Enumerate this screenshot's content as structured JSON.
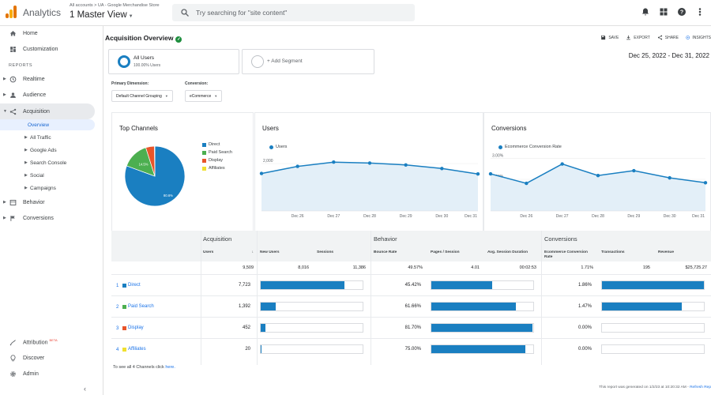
{
  "header": {
    "app_name": "Analytics",
    "breadcrumb": "All accounts > UA - Google Merchandise Store",
    "view_name": "1 Master View",
    "search_placeholder": "Try searching for \"site content\""
  },
  "sidebar": {
    "top_items": [
      {
        "label": "Home"
      },
      {
        "label": "Customization"
      }
    ],
    "reports_header": "REPORTS",
    "reports": [
      {
        "label": "Realtime"
      },
      {
        "label": "Audience"
      },
      {
        "label": "Acquisition"
      },
      {
        "label": "Behavior"
      },
      {
        "label": "Conversions"
      }
    ],
    "acquisition_sub": [
      "Overview",
      "All Traffic",
      "Google Ads",
      "Search Console",
      "Social",
      "Campaigns"
    ],
    "bottom_items": [
      {
        "label": "Attribution",
        "badge": "BETA"
      },
      {
        "label": "Discover"
      },
      {
        "label": "Admin"
      }
    ]
  },
  "page": {
    "title": "Acquisition Overview",
    "actions": [
      "SAVE",
      "EXPORT",
      "SHARE",
      "INSIGHTS"
    ],
    "segments": [
      {
        "name": "All Users",
        "sub": "100.00% Users"
      },
      {
        "name": "+ Add Segment"
      }
    ],
    "date_range": "Dec 25, 2022 - Dec 31, 2022",
    "primary_dimension_label": "Primary Dimension:",
    "primary_dimension_value": "Default Channel Grouping",
    "conversion_label": "Conversion:",
    "conversion_value": "eCommerce"
  },
  "colors": {
    "direct": "#1a7fc1",
    "paid_search": "#4caf50",
    "display": "#e8552a",
    "affiliates": "#f0e030",
    "accent": "#1a73e8"
  },
  "cards": {
    "top_channels_title": "Top Channels",
    "users_title": "Users",
    "conversions_title": "Conversions"
  },
  "chart_data": [
    {
      "type": "pie",
      "title": "Top Channels",
      "categories": [
        "Direct",
        "Paid Search",
        "Display",
        "Affiliates"
      ],
      "values": [
        80.6,
        14.5,
        4.7,
        0.2
      ],
      "data_labels": [
        "80.6%",
        "14.5%",
        "",
        ""
      ]
    },
    {
      "type": "area",
      "title": "Users",
      "series": [
        {
          "name": "Users",
          "values": [
            1580,
            1880,
            2060,
            2020,
            1940,
            1790,
            1560
          ]
        }
      ],
      "x": [
        "Dec 25",
        "Dec 26",
        "Dec 27",
        "Dec 28",
        "Dec 29",
        "Dec 30",
        "Dec 31"
      ],
      "x_tick_labels": [
        "Dec 26",
        "Dec 27",
        "Dec 28",
        "Dec 29",
        "Dec 30",
        "Dec 31"
      ],
      "y_tick_labels": [
        "2,000",
        "1,000"
      ],
      "ylim": [
        0,
        2400
      ]
    },
    {
      "type": "area",
      "title": "Conversions",
      "series": [
        {
          "name": "Ecommerce Conversion Rate",
          "values": [
            2.26,
            1.81,
            2.73,
            2.18,
            2.41,
            2.07,
            1.84
          ]
        }
      ],
      "x": [
        "Dec 25",
        "Dec 26",
        "Dec 27",
        "Dec 28",
        "Dec 29",
        "Dec 30",
        "Dec 31"
      ],
      "x_tick_labels": [
        "Dec 26",
        "Dec 27",
        "Dec 28",
        "Dec 29",
        "Dec 30",
        "Dec 31"
      ],
      "y_tick_labels": [
        "3.00%",
        "2.00%",
        "1.00%"
      ],
      "ylim": [
        0.5,
        3.2
      ]
    }
  ],
  "table": {
    "groups": [
      "Acquisition",
      "Behavior",
      "Conversions"
    ],
    "columns": [
      "Users",
      "New Users",
      "Sessions",
      "Bounce Rate",
      "Pages / Session",
      "Avg. Session Duration",
      "Ecommerce Conversion Rate",
      "Transactions",
      "Revenue"
    ],
    "totals": [
      "9,509",
      "8,016",
      "11,386",
      "49.57%",
      "4.01",
      "00:02:53",
      "1.71%",
      "195",
      "$25,725.27"
    ],
    "rows": [
      {
        "rank": "1",
        "name": "Direct",
        "users": "7,723",
        "new_users_pct": 0.82,
        "bounce": "45.42%",
        "pages_pct": 0.6,
        "conv": "1.86%",
        "trans_pct": 1.0
      },
      {
        "rank": "2",
        "name": "Paid Search",
        "users": "1,392",
        "new_users_pct": 0.15,
        "bounce": "61.66%",
        "pages_pct": 0.83,
        "conv": "1.47%",
        "trans_pct": 0.78
      },
      {
        "rank": "3",
        "name": "Display",
        "users": "452",
        "new_users_pct": 0.05,
        "bounce": "81.70%",
        "pages_pct": 0.99,
        "conv": "0.00%",
        "trans_pct": 0
      },
      {
        "rank": "4",
        "name": "Affiliates",
        "users": "20",
        "new_users_pct": 0.01,
        "bounce": "75.00%",
        "pages_pct": 0.92,
        "conv": "0.00%",
        "trans_pct": 0
      }
    ],
    "footer_prefix": "To see all 4 Channels click",
    "footer_link": "here.",
    "generated_prefix": "This report was generated on 1/2/23 at 10:20:32 AM -",
    "generated_link": "Refresh Rep"
  }
}
